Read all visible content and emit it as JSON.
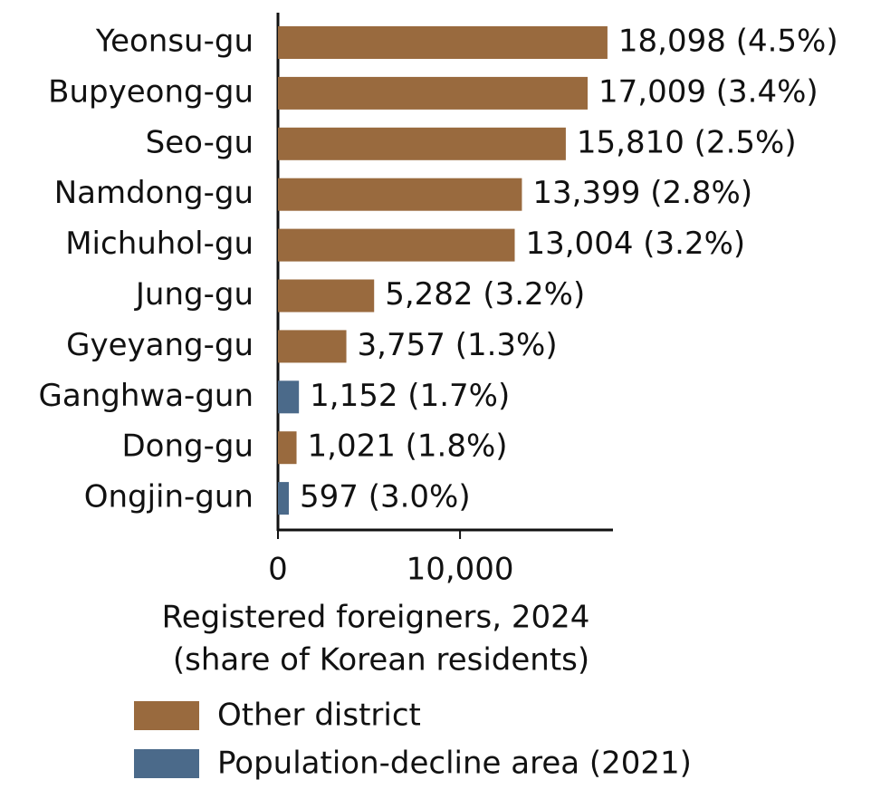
{
  "chart_data": {
    "type": "hbar",
    "categories": [
      "Yeonsu-gu",
      "Bupyeong-gu",
      "Seo-gu",
      "Namdong-gu",
      "Michuhol-gu",
      "Jung-gu",
      "Gyeyang-gu",
      "Ganghwa-gun",
      "Dong-gu",
      "Ongjin-gun"
    ],
    "series": [
      {
        "name": "Other district",
        "color": "#996a3e",
        "values": [
          18098,
          17009,
          15810,
          13399,
          13004,
          5282,
          3757,
          null,
          1021,
          null
        ],
        "value_labels": [
          "18,098 (4.5%)",
          "17,009 (3.4%)",
          "15,810 (2.5%)",
          "13,399 (2.8%)",
          "13,004 (3.2%)",
          "5,282 (3.2%)",
          "3,757 (1.3%)",
          null,
          "1,021 (1.8%)",
          null
        ]
      },
      {
        "name": "Population-decline area (2021)",
        "color": "#4b6a8a",
        "values": [
          null,
          null,
          null,
          null,
          null,
          null,
          null,
          1152,
          null,
          597
        ],
        "value_labels": [
          null,
          null,
          null,
          null,
          null,
          null,
          null,
          "1,152 (1.7%)",
          null,
          "597 (3.0%)"
        ]
      }
    ],
    "xlim": [
      0,
      18400
    ],
    "xticks": [
      0,
      {
        "value": 10000,
        "label": "10,000"
      }
    ],
    "xlabel": [
      "Registered foreigners, 2024",
      "(share of Korean residents)"
    ]
  }
}
